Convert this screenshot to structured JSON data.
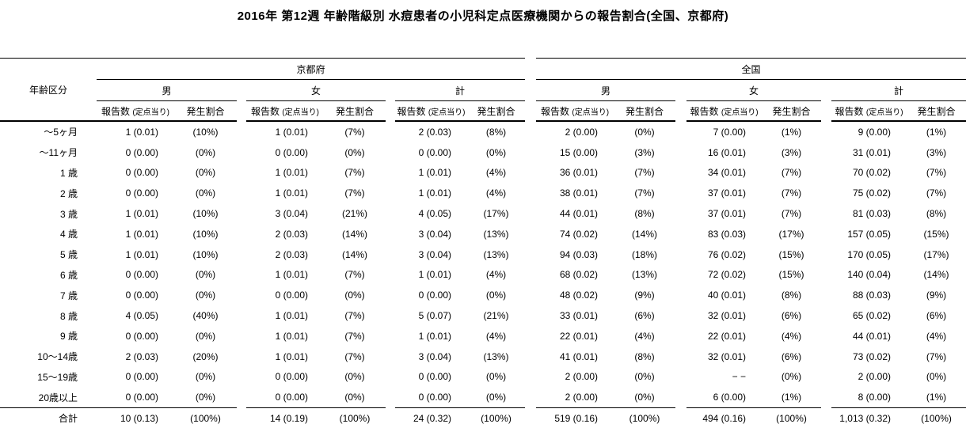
{
  "title": "2016年 第12週 年齢階級別 水痘患者の小児科定点医療機関からの報告割合(全国、京都府)",
  "table": {
    "age_header": "年齢区分",
    "regions": [
      "京都府",
      "全国"
    ],
    "sex": [
      "男",
      "女",
      "計"
    ],
    "report_label": "報告数",
    "report_sub": "(定点当り)",
    "rate_label": "発生割合",
    "rows": [
      {
        "age": "～5ヶ月",
        "values": [
          "1 (0.01)",
          "(10%)",
          "1 (0.01)",
          "(7%)",
          "2 (0.03)",
          "(8%)",
          "2 (0.00)",
          "(0%)",
          "7 (0.00)",
          "(1%)",
          "9 (0.00)",
          "(1%)"
        ]
      },
      {
        "age": "～11ヶ月",
        "values": [
          "0 (0.00)",
          "(0%)",
          "0 (0.00)",
          "(0%)",
          "0 (0.00)",
          "(0%)",
          "15 (0.00)",
          "(3%)",
          "16 (0.01)",
          "(3%)",
          "31 (0.01)",
          "(3%)"
        ]
      },
      {
        "age": "1 歳",
        "values": [
          "0 (0.00)",
          "(0%)",
          "1 (0.01)",
          "(7%)",
          "1 (0.01)",
          "(4%)",
          "36 (0.01)",
          "(7%)",
          "34 (0.01)",
          "(7%)",
          "70 (0.02)",
          "(7%)"
        ]
      },
      {
        "age": "2 歳",
        "values": [
          "0 (0.00)",
          "(0%)",
          "1 (0.01)",
          "(7%)",
          "1 (0.01)",
          "(4%)",
          "38 (0.01)",
          "(7%)",
          "37 (0.01)",
          "(7%)",
          "75 (0.02)",
          "(7%)"
        ]
      },
      {
        "age": "3 歳",
        "values": [
          "1 (0.01)",
          "(10%)",
          "3 (0.04)",
          "(21%)",
          "4 (0.05)",
          "(17%)",
          "44 (0.01)",
          "(8%)",
          "37 (0.01)",
          "(7%)",
          "81 (0.03)",
          "(8%)"
        ]
      },
      {
        "age": "4 歳",
        "values": [
          "1 (0.01)",
          "(10%)",
          "2 (0.03)",
          "(14%)",
          "3 (0.04)",
          "(13%)",
          "74 (0.02)",
          "(14%)",
          "83 (0.03)",
          "(17%)",
          "157 (0.05)",
          "(15%)"
        ]
      },
      {
        "age": "5 歳",
        "values": [
          "1 (0.01)",
          "(10%)",
          "2 (0.03)",
          "(14%)",
          "3 (0.04)",
          "(13%)",
          "94 (0.03)",
          "(18%)",
          "76 (0.02)",
          "(15%)",
          "170 (0.05)",
          "(17%)"
        ]
      },
      {
        "age": "6 歳",
        "values": [
          "0 (0.00)",
          "(0%)",
          "1 (0.01)",
          "(7%)",
          "1 (0.01)",
          "(4%)",
          "68 (0.02)",
          "(13%)",
          "72 (0.02)",
          "(15%)",
          "140 (0.04)",
          "(14%)"
        ]
      },
      {
        "age": "7 歳",
        "values": [
          "0 (0.00)",
          "(0%)",
          "0 (0.00)",
          "(0%)",
          "0 (0.00)",
          "(0%)",
          "48 (0.02)",
          "(9%)",
          "40 (0.01)",
          "(8%)",
          "88 (0.03)",
          "(9%)"
        ]
      },
      {
        "age": "8 歳",
        "values": [
          "4 (0.05)",
          "(40%)",
          "1 (0.01)",
          "(7%)",
          "5 (0.07)",
          "(21%)",
          "33 (0.01)",
          "(6%)",
          "32 (0.01)",
          "(6%)",
          "65 (0.02)",
          "(6%)"
        ]
      },
      {
        "age": "9 歳",
        "values": [
          "0 (0.00)",
          "(0%)",
          "1 (0.01)",
          "(7%)",
          "1 (0.01)",
          "(4%)",
          "22 (0.01)",
          "(4%)",
          "22 (0.01)",
          "(4%)",
          "44 (0.01)",
          "(4%)"
        ]
      },
      {
        "age": "10～14歳",
        "values": [
          "2 (0.03)",
          "(20%)",
          "1 (0.01)",
          "(7%)",
          "3 (0.04)",
          "(13%)",
          "41 (0.01)",
          "(8%)",
          "32 (0.01)",
          "(6%)",
          "73 (0.02)",
          "(7%)"
        ]
      },
      {
        "age": "15～19歳",
        "values": [
          "0 (0.00)",
          "(0%)",
          "0 (0.00)",
          "(0%)",
          "0 (0.00)",
          "(0%)",
          "2 (0.00)",
          "(0%)",
          "− −",
          "(0%)",
          "2 (0.00)",
          "(0%)"
        ]
      },
      {
        "age": "20歳以上",
        "values": [
          "0 (0.00)",
          "(0%)",
          "0 (0.00)",
          "(0%)",
          "0 (0.00)",
          "(0%)",
          "2 (0.00)",
          "(0%)",
          "6 (0.00)",
          "(1%)",
          "8 (0.00)",
          "(1%)"
        ]
      }
    ],
    "total": {
      "age": "合計",
      "values": [
        "10 (0.13)",
        "(100%)",
        "14 (0.19)",
        "(100%)",
        "24 (0.32)",
        "(100%)",
        "519 (0.16)",
        "(100%)",
        "494 (0.16)",
        "(100%)",
        "1,013 (0.32)",
        "(100%)"
      ]
    }
  }
}
